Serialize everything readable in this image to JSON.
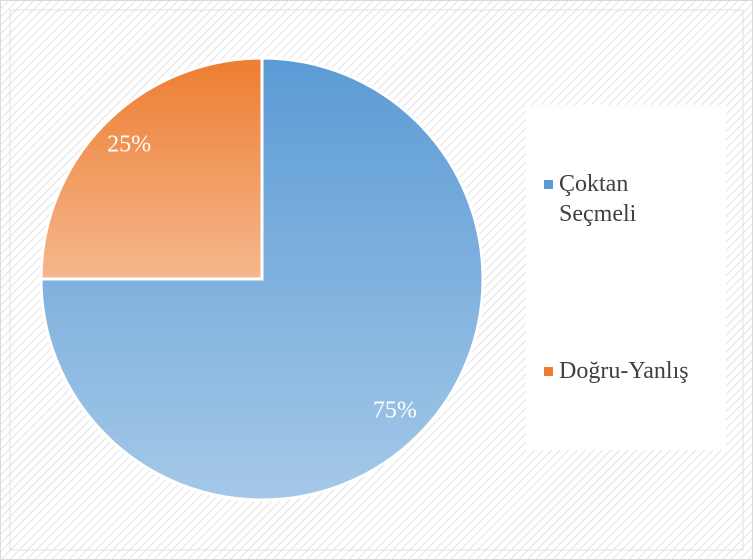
{
  "chart_data": {
    "type": "pie",
    "categories": [
      "Çoktan Seçmeli",
      "Doğru-Yanlış"
    ],
    "values": [
      75,
      25
    ],
    "value_labels": [
      "75%",
      "25%"
    ],
    "colors": [
      "#5b9bd5",
      "#ed7d31"
    ],
    "legend": "right"
  }
}
